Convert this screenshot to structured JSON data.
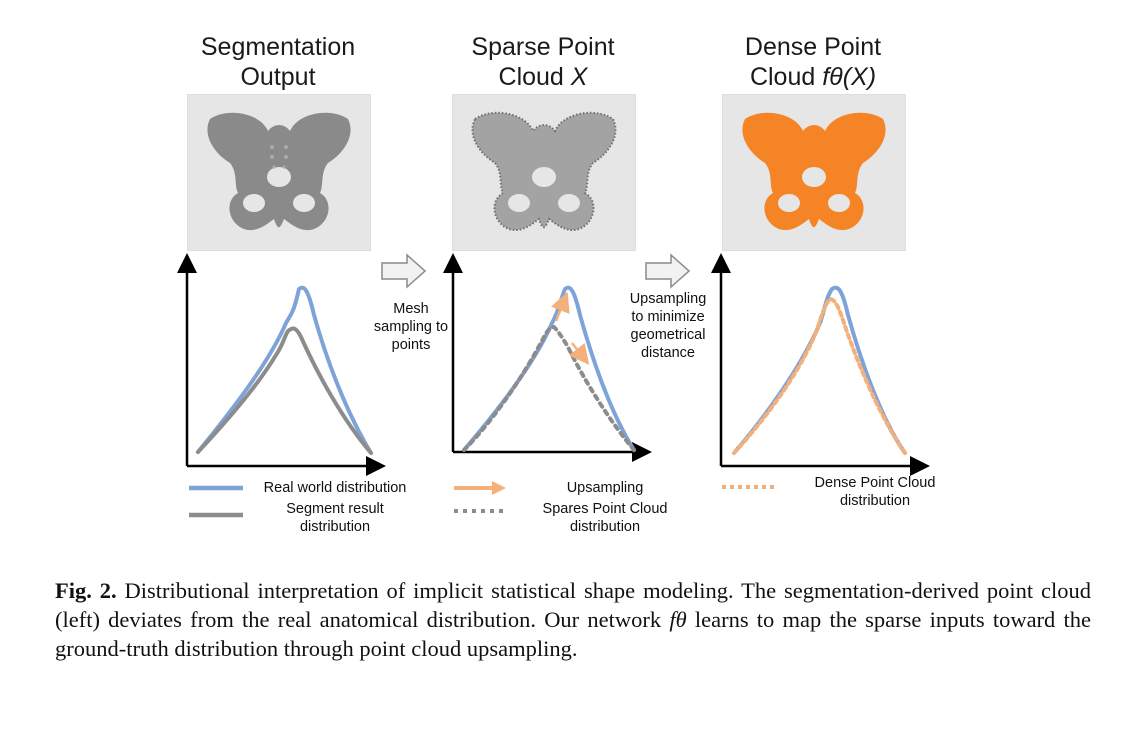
{
  "figure": {
    "stages": [
      {
        "title_line1": "Segmentation",
        "title_line2": "Output"
      },
      {
        "title_line1": "Sparse Point",
        "title_line2": "Cloud",
        "title_math": "X"
      },
      {
        "title_line1": "Dense Point",
        "title_line2": "Cloud",
        "title_math": "fθ(X)"
      }
    ],
    "arrows": [
      {
        "label_lines": [
          "Mesh",
          "sampling to",
          "points"
        ]
      },
      {
        "label_lines": [
          "Upsampling",
          "to minimize",
          "geometrical",
          "distance"
        ]
      }
    ],
    "legends": {
      "left": [
        {
          "text": "Real world distribution",
          "style": "solid",
          "color": "#7ea3d8"
        },
        {
          "text_lines": [
            "Segment result",
            "distribution"
          ],
          "style": "solid",
          "color": "#8c8c8c"
        }
      ],
      "middle": [
        {
          "text": "Upsampling",
          "style": "arrow",
          "color": "#f3b07a"
        },
        {
          "text_lines": [
            "Spares Point Cloud",
            "distribution"
          ],
          "style": "dotted",
          "color": "#8c8c8c"
        }
      ],
      "right": [
        {
          "text_lines": [
            "Dense Point Cloud",
            "distribution"
          ],
          "style": "dotted",
          "color": "#f3b07a"
        }
      ]
    },
    "colors": {
      "real": "#7ea3d8",
      "segment": "#8c8c8c",
      "orange": "#f3b07a",
      "dense_fill": "#f58426",
      "gray_fill": "#8a8a8a"
    }
  },
  "caption": {
    "label": "Fig. 2.",
    "text_1": " Distributional interpretation of implicit statistical shape modeling. The segmentation-derived point cloud (left) deviates from the real anatomical distribution. Our network ",
    "math": "fθ",
    "text_2": " learns to map the sparse inputs toward the ground-truth distribution through point cloud upsampling."
  }
}
